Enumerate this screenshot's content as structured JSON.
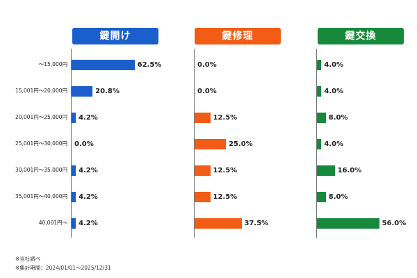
{
  "chart_data": {
    "type": "bar",
    "orientation": "horizontal",
    "layout": "three panels side by side, shared categories",
    "categories": [
      "～15,000円",
      "15,001円～20,000円",
      "20,001円～25,000円",
      "25,001円～30,000円",
      "30,001円～35,000円",
      "35,001円～40,000円",
      "40,001円～"
    ],
    "series": [
      {
        "name": "鍵開け",
        "color": "#1a5fcc",
        "values": [
          62.5,
          20.8,
          4.2,
          0.0,
          4.2,
          4.2,
          4.2
        ],
        "labels": [
          "62.5%",
          "20.8%",
          "4.2%",
          "0.0%",
          "4.2%",
          "4.2%",
          "4.2%"
        ]
      },
      {
        "name": "鍵修理",
        "color": "#f25c14",
        "values": [
          0.0,
          0.0,
          12.5,
          25.0,
          12.5,
          12.5,
          37.5
        ],
        "labels": [
          "0.0%",
          "0.0%",
          "12.5%",
          "25.0%",
          "12.5%",
          "12.5%",
          "37.5%"
        ]
      },
      {
        "name": "鍵交換",
        "color": "#168a3a",
        "values": [
          4.0,
          4.0,
          8.0,
          4.0,
          16.0,
          8.0,
          56.0
        ],
        "labels": [
          "4.0%",
          "4.0%",
          "8.0%",
          "4.0%",
          "16.0%",
          "8.0%",
          "56.0%"
        ]
      }
    ],
    "unit": "%",
    "grid": false,
    "legend": "panel headers"
  },
  "notes": [
    "※当社調べ",
    "※集計期間：2024/01/01～2025/12/31"
  ]
}
